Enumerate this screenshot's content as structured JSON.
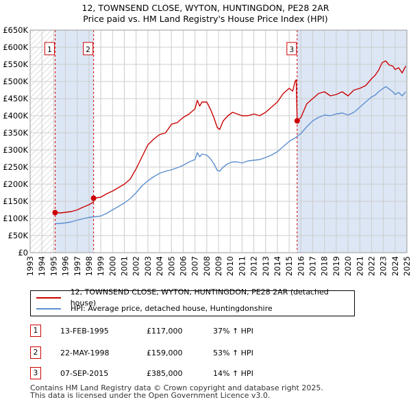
{
  "header": {
    "title_line1": "12, TOWNSEND CLOSE, WYTON, HUNTINGDON, PE28 2AR",
    "title_line2": "Price paid vs. HM Land Registry's House Price Index (HPI)"
  },
  "legend": {
    "property_label": "12, TOWNSEND CLOSE, WYTON, HUNTINGDON, PE28 2AR (detached house)",
    "hpi_label": "HPI: Average price, detached house, Huntingdonshire"
  },
  "transactions": [
    {
      "num": "1",
      "date": "13-FEB-1995",
      "price": "£117,000",
      "hpi": "37% ↑ HPI"
    },
    {
      "num": "2",
      "date": "22-MAY-1998",
      "price": "£159,000",
      "hpi": "53% ↑ HPI"
    },
    {
      "num": "3",
      "date": "07-SEP-2015",
      "price": "£385,000",
      "hpi": "14% ↑ HPI"
    }
  ],
  "footer": {
    "line1": "Contains HM Land Registry data © Crown copyright and database right 2025.",
    "line2": "This data is licensed under the Open Government Licence v3.0."
  },
  "colors": {
    "property": "#cc0000",
    "hpi": "#5b8ed0",
    "shade": "#dce6f5",
    "grid": "#cccccc"
  },
  "chart_data": {
    "type": "line",
    "xlabel": "",
    "ylabel": "",
    "xlim": [
      1993,
      2025
    ],
    "ylim": [
      0,
      650000
    ],
    "grid": true,
    "legend_position": "below",
    "x_ticks": [
      "1993",
      "1994",
      "1995",
      "1996",
      "1997",
      "1998",
      "1999",
      "2000",
      "2001",
      "2002",
      "2003",
      "2004",
      "2005",
      "2006",
      "2007",
      "2008",
      "2009",
      "2010",
      "2011",
      "2012",
      "2013",
      "2014",
      "2015",
      "2016",
      "2017",
      "2018",
      "2019",
      "2020",
      "2021",
      "2022",
      "2023",
      "2024",
      "2025"
    ],
    "y_ticks": [
      {
        "value": 0,
        "label": "£0"
      },
      {
        "value": 50000,
        "label": "£50K"
      },
      {
        "value": 100000,
        "label": "£100K"
      },
      {
        "value": 150000,
        "label": "£150K"
      },
      {
        "value": 200000,
        "label": "£200K"
      },
      {
        "value": 250000,
        "label": "£250K"
      },
      {
        "value": 300000,
        "label": "£300K"
      },
      {
        "value": 350000,
        "label": "£350K"
      },
      {
        "value": 400000,
        "label": "£400K"
      },
      {
        "value": 450000,
        "label": "£450K"
      },
      {
        "value": 500000,
        "label": "£500K"
      },
      {
        "value": 550000,
        "label": "£550K"
      },
      {
        "value": 600000,
        "label": "£600K"
      },
      {
        "value": 650000,
        "label": "£650K"
      }
    ],
    "shaded_ranges": [
      [
        1995.12,
        1998.39
      ],
      [
        2015.68,
        2025
      ]
    ],
    "hatched_range": [
      1993,
      1995.12
    ],
    "sales": [
      {
        "label": "1",
        "x": 1995.12,
        "y": 117000
      },
      {
        "label": "2",
        "x": 1998.39,
        "y": 159000
      },
      {
        "label": "3",
        "x": 2015.68,
        "y": 385000
      }
    ],
    "marker_label_value": 590000,
    "series": [
      {
        "name": "12, TOWNSEND CLOSE, WYTON, HUNTINGDON, PE28 2AR (detached house)",
        "x": [
          1995.12,
          1995.3,
          1995.6,
          1996,
          1996.5,
          1997,
          1997.5,
          1998.0,
          1998.38,
          1998.39,
          1998.6,
          1999,
          1999.5,
          2000,
          2000.5,
          2001,
          2001.5,
          2002,
          2002.5,
          2003,
          2003.5,
          2004,
          2004.5,
          2005,
          2005.5,
          2006,
          2006.5,
          2007,
          2007.2,
          2007.4,
          2007.6,
          2008,
          2008.3,
          2008.6,
          2008.9,
          2009.1,
          2009.4,
          2009.8,
          2010.2,
          2010.6,
          2011,
          2011.5,
          2012,
          2012.5,
          2013,
          2013.5,
          2014,
          2014.5,
          2015,
          2015.3,
          2015.5,
          2015.6,
          2015.68,
          2016,
          2016.5,
          2017,
          2017.5,
          2018,
          2018.5,
          2019,
          2019.5,
          2020,
          2020.5,
          2021,
          2021.5,
          2022,
          2022.3,
          2022.6,
          2022.9,
          2023.2,
          2023.5,
          2023.8,
          2024,
          2024.3,
          2024.6,
          2024.9
        ],
        "values": [
          117000,
          117000,
          116000,
          118000,
          120000,
          125000,
          133000,
          140000,
          148000,
          159000,
          160000,
          162000,
          172000,
          180000,
          190000,
          200000,
          215000,
          245000,
          280000,
          315000,
          332000,
          345000,
          350000,
          375000,
          380000,
          395000,
          405000,
          420000,
          445000,
          428000,
          440000,
          440000,
          420000,
          395000,
          365000,
          360000,
          385000,
          400000,
          410000,
          405000,
          400000,
          400000,
          405000,
          400000,
          410000,
          425000,
          440000,
          465000,
          480000,
          472000,
          500000,
          505000,
          385000,
          395000,
          435000,
          450000,
          465000,
          470000,
          458000,
          462000,
          470000,
          458000,
          475000,
          480000,
          488000,
          508000,
          518000,
          533000,
          555000,
          560000,
          548000,
          545000,
          535000,
          540000,
          525000,
          545000
        ]
      },
      {
        "name": "HPI: Average price, detached house, Huntingdonshire",
        "x": [
          1995.12,
          1995.5,
          1996,
          1996.5,
          1997,
          1997.5,
          1998,
          1998.5,
          1999,
          1999.5,
          2000,
          2000.5,
          2001,
          2001.5,
          2002,
          2002.5,
          2003,
          2003.5,
          2004,
          2004.5,
          2005,
          2005.5,
          2006,
          2006.5,
          2007,
          2007.2,
          2007.4,
          2007.6,
          2008,
          2008.3,
          2008.6,
          2008.9,
          2009.1,
          2009.4,
          2009.8,
          2010.2,
          2010.6,
          2011,
          2011.5,
          2012,
          2012.5,
          2013,
          2013.5,
          2014,
          2014.5,
          2015,
          2015.5,
          2016,
          2016.5,
          2017,
          2017.5,
          2018,
          2018.5,
          2019,
          2019.5,
          2020,
          2020.5,
          2021,
          2021.5,
          2022,
          2022.3,
          2022.6,
          2022.9,
          2023.2,
          2023.5,
          2023.8,
          2024,
          2024.3,
          2024.6,
          2024.9
        ],
        "values": [
          85000,
          85000,
          87000,
          90000,
          95000,
          99000,
          103000,
          105000,
          107000,
          115000,
          125000,
          135000,
          145000,
          158000,
          175000,
          195000,
          210000,
          222000,
          232000,
          238000,
          242000,
          248000,
          255000,
          265000,
          272000,
          292000,
          280000,
          288000,
          285000,
          275000,
          260000,
          240000,
          238000,
          250000,
          260000,
          265000,
          265000,
          262000,
          268000,
          270000,
          272000,
          278000,
          285000,
          295000,
          310000,
          325000,
          335000,
          348000,
          368000,
          385000,
          395000,
          402000,
          400000,
          405000,
          408000,
          402000,
          410000,
          425000,
          440000,
          455000,
          460000,
          470000,
          478000,
          485000,
          478000,
          470000,
          462000,
          468000,
          458000,
          470000
        ]
      }
    ]
  }
}
